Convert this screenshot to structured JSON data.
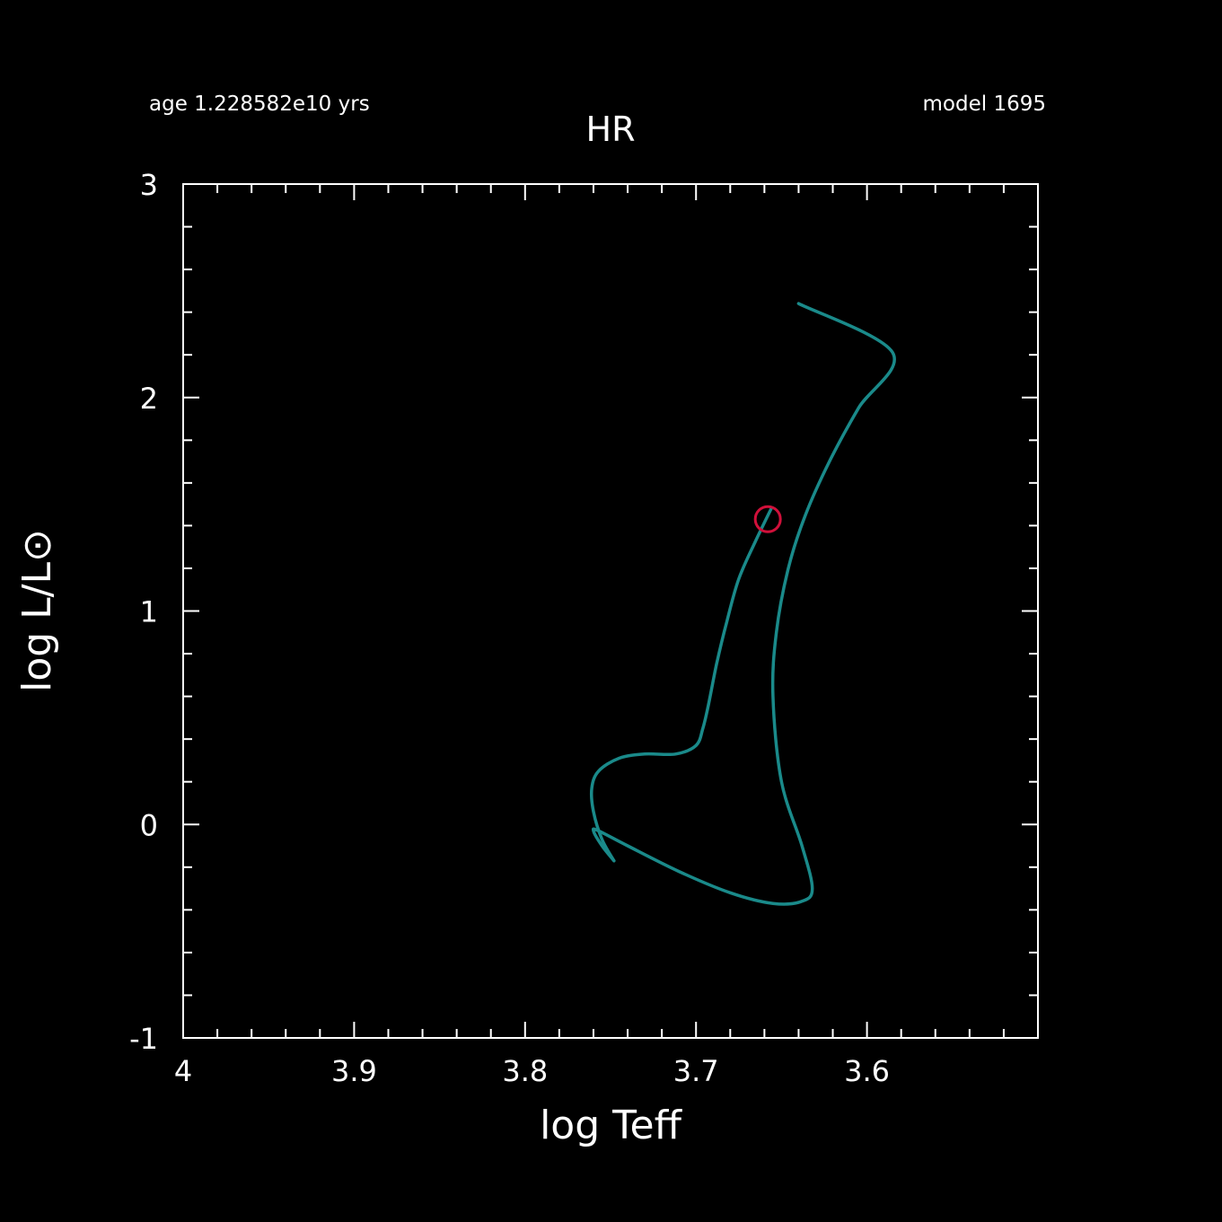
{
  "header": {
    "age": "age 1.228582e10 yrs",
    "model": "model 1695"
  },
  "chart_data": {
    "type": "line",
    "title": "HR",
    "xlabel": "log Teff",
    "ylabel": "log L/L⊙",
    "xlim": [
      4.0,
      3.5
    ],
    "ylim": [
      -1,
      3
    ],
    "x_ticks": [
      "4",
      "3.9",
      "3.8",
      "3.7",
      "3.6"
    ],
    "x_tick_values": [
      4.0,
      3.9,
      3.8,
      3.7,
      3.6
    ],
    "y_ticks": [
      "-1",
      "0",
      "1",
      "2",
      "3"
    ],
    "y_tick_values": [
      -1,
      0,
      1,
      2,
      3
    ],
    "grid": false,
    "colors": {
      "background": "#000000",
      "axes": "#ffffff",
      "track": "#1a8a8a",
      "marker": "#d0103a"
    },
    "series": [
      {
        "x": [
          3.748,
          3.755,
          3.76,
          3.761,
          3.757,
          3.745,
          3.73,
          3.712,
          3.7,
          3.696,
          3.693,
          3.688,
          3.682,
          3.675,
          3.665,
          3.656
        ],
        "y": [
          -0.17,
          -0.07,
          0.06,
          0.17,
          0.25,
          0.31,
          0.33,
          0.33,
          0.37,
          0.45,
          0.55,
          0.75,
          0.95,
          1.15,
          1.33,
          1.48
        ]
      },
      {
        "x": [
          3.748,
          3.755,
          3.76,
          3.757,
          3.74,
          3.71,
          3.68,
          3.655,
          3.638,
          3.632,
          3.638,
          3.65,
          3.655,
          3.653,
          3.646,
          3.636,
          3.622,
          3.605,
          3.585,
          3.64
        ],
        "y": [
          -0.17,
          -0.1,
          -0.03,
          -0.03,
          -0.1,
          -0.22,
          -0.32,
          -0.37,
          -0.36,
          -0.3,
          -0.1,
          0.2,
          0.6,
          0.9,
          1.2,
          1.45,
          1.7,
          1.95,
          2.21,
          2.44
        ]
      }
    ],
    "marker": {
      "x": 3.658,
      "y": 1.43
    }
  }
}
